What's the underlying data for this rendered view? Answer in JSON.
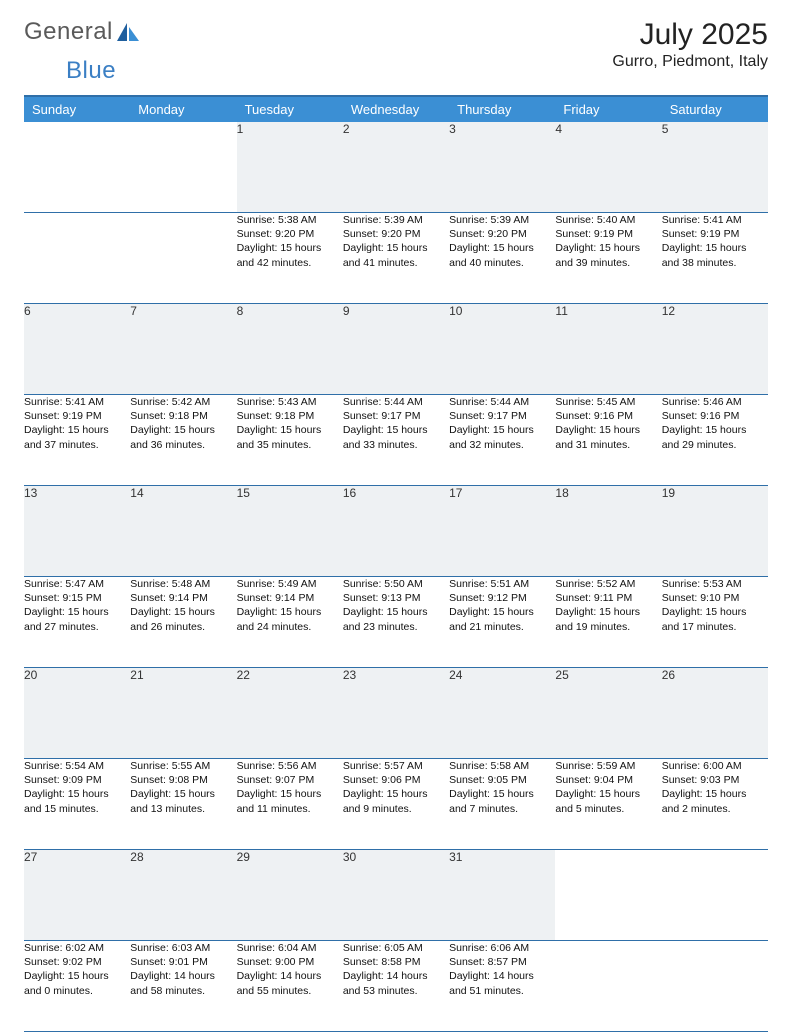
{
  "brand": {
    "word1": "General",
    "word2": "Blue"
  },
  "title": "July 2025",
  "location": "Gurro, Piedmont, Italy",
  "colors": {
    "header_bg": "#3b8fd4",
    "header_text": "#ffffff",
    "rule": "#2f6fa8",
    "daynum_bg": "#eef1f3",
    "logo_gray": "#5a5a5a",
    "logo_blue": "#3b7fc4"
  },
  "columns": [
    "Sunday",
    "Monday",
    "Tuesday",
    "Wednesday",
    "Thursday",
    "Friday",
    "Saturday"
  ],
  "weeks": [
    {
      "nums": [
        "",
        "",
        "1",
        "2",
        "3",
        "4",
        "5"
      ],
      "cells": [
        null,
        null,
        {
          "sunrise": "Sunrise: 5:38 AM",
          "sunset": "Sunset: 9:20 PM",
          "day1": "Daylight: 15 hours",
          "day2": "and 42 minutes."
        },
        {
          "sunrise": "Sunrise: 5:39 AM",
          "sunset": "Sunset: 9:20 PM",
          "day1": "Daylight: 15 hours",
          "day2": "and 41 minutes."
        },
        {
          "sunrise": "Sunrise: 5:39 AM",
          "sunset": "Sunset: 9:20 PM",
          "day1": "Daylight: 15 hours",
          "day2": "and 40 minutes."
        },
        {
          "sunrise": "Sunrise: 5:40 AM",
          "sunset": "Sunset: 9:19 PM",
          "day1": "Daylight: 15 hours",
          "day2": "and 39 minutes."
        },
        {
          "sunrise": "Sunrise: 5:41 AM",
          "sunset": "Sunset: 9:19 PM",
          "day1": "Daylight: 15 hours",
          "day2": "and 38 minutes."
        }
      ]
    },
    {
      "nums": [
        "6",
        "7",
        "8",
        "9",
        "10",
        "11",
        "12"
      ],
      "cells": [
        {
          "sunrise": "Sunrise: 5:41 AM",
          "sunset": "Sunset: 9:19 PM",
          "day1": "Daylight: 15 hours",
          "day2": "and 37 minutes."
        },
        {
          "sunrise": "Sunrise: 5:42 AM",
          "sunset": "Sunset: 9:18 PM",
          "day1": "Daylight: 15 hours",
          "day2": "and 36 minutes."
        },
        {
          "sunrise": "Sunrise: 5:43 AM",
          "sunset": "Sunset: 9:18 PM",
          "day1": "Daylight: 15 hours",
          "day2": "and 35 minutes."
        },
        {
          "sunrise": "Sunrise: 5:44 AM",
          "sunset": "Sunset: 9:17 PM",
          "day1": "Daylight: 15 hours",
          "day2": "and 33 minutes."
        },
        {
          "sunrise": "Sunrise: 5:44 AM",
          "sunset": "Sunset: 9:17 PM",
          "day1": "Daylight: 15 hours",
          "day2": "and 32 minutes."
        },
        {
          "sunrise": "Sunrise: 5:45 AM",
          "sunset": "Sunset: 9:16 PM",
          "day1": "Daylight: 15 hours",
          "day2": "and 31 minutes."
        },
        {
          "sunrise": "Sunrise: 5:46 AM",
          "sunset": "Sunset: 9:16 PM",
          "day1": "Daylight: 15 hours",
          "day2": "and 29 minutes."
        }
      ]
    },
    {
      "nums": [
        "13",
        "14",
        "15",
        "16",
        "17",
        "18",
        "19"
      ],
      "cells": [
        {
          "sunrise": "Sunrise: 5:47 AM",
          "sunset": "Sunset: 9:15 PM",
          "day1": "Daylight: 15 hours",
          "day2": "and 27 minutes."
        },
        {
          "sunrise": "Sunrise: 5:48 AM",
          "sunset": "Sunset: 9:14 PM",
          "day1": "Daylight: 15 hours",
          "day2": "and 26 minutes."
        },
        {
          "sunrise": "Sunrise: 5:49 AM",
          "sunset": "Sunset: 9:14 PM",
          "day1": "Daylight: 15 hours",
          "day2": "and 24 minutes."
        },
        {
          "sunrise": "Sunrise: 5:50 AM",
          "sunset": "Sunset: 9:13 PM",
          "day1": "Daylight: 15 hours",
          "day2": "and 23 minutes."
        },
        {
          "sunrise": "Sunrise: 5:51 AM",
          "sunset": "Sunset: 9:12 PM",
          "day1": "Daylight: 15 hours",
          "day2": "and 21 minutes."
        },
        {
          "sunrise": "Sunrise: 5:52 AM",
          "sunset": "Sunset: 9:11 PM",
          "day1": "Daylight: 15 hours",
          "day2": "and 19 minutes."
        },
        {
          "sunrise": "Sunrise: 5:53 AM",
          "sunset": "Sunset: 9:10 PM",
          "day1": "Daylight: 15 hours",
          "day2": "and 17 minutes."
        }
      ]
    },
    {
      "nums": [
        "20",
        "21",
        "22",
        "23",
        "24",
        "25",
        "26"
      ],
      "cells": [
        {
          "sunrise": "Sunrise: 5:54 AM",
          "sunset": "Sunset: 9:09 PM",
          "day1": "Daylight: 15 hours",
          "day2": "and 15 minutes."
        },
        {
          "sunrise": "Sunrise: 5:55 AM",
          "sunset": "Sunset: 9:08 PM",
          "day1": "Daylight: 15 hours",
          "day2": "and 13 minutes."
        },
        {
          "sunrise": "Sunrise: 5:56 AM",
          "sunset": "Sunset: 9:07 PM",
          "day1": "Daylight: 15 hours",
          "day2": "and 11 minutes."
        },
        {
          "sunrise": "Sunrise: 5:57 AM",
          "sunset": "Sunset: 9:06 PM",
          "day1": "Daylight: 15 hours",
          "day2": "and 9 minutes."
        },
        {
          "sunrise": "Sunrise: 5:58 AM",
          "sunset": "Sunset: 9:05 PM",
          "day1": "Daylight: 15 hours",
          "day2": "and 7 minutes."
        },
        {
          "sunrise": "Sunrise: 5:59 AM",
          "sunset": "Sunset: 9:04 PM",
          "day1": "Daylight: 15 hours",
          "day2": "and 5 minutes."
        },
        {
          "sunrise": "Sunrise: 6:00 AM",
          "sunset": "Sunset: 9:03 PM",
          "day1": "Daylight: 15 hours",
          "day2": "and 2 minutes."
        }
      ]
    },
    {
      "nums": [
        "27",
        "28",
        "29",
        "30",
        "31",
        "",
        ""
      ],
      "cells": [
        {
          "sunrise": "Sunrise: 6:02 AM",
          "sunset": "Sunset: 9:02 PM",
          "day1": "Daylight: 15 hours",
          "day2": "and 0 minutes."
        },
        {
          "sunrise": "Sunrise: 6:03 AM",
          "sunset": "Sunset: 9:01 PM",
          "day1": "Daylight: 14 hours",
          "day2": "and 58 minutes."
        },
        {
          "sunrise": "Sunrise: 6:04 AM",
          "sunset": "Sunset: 9:00 PM",
          "day1": "Daylight: 14 hours",
          "day2": "and 55 minutes."
        },
        {
          "sunrise": "Sunrise: 6:05 AM",
          "sunset": "Sunset: 8:58 PM",
          "day1": "Daylight: 14 hours",
          "day2": "and 53 minutes."
        },
        {
          "sunrise": "Sunrise: 6:06 AM",
          "sunset": "Sunset: 8:57 PM",
          "day1": "Daylight: 14 hours",
          "day2": "and 51 minutes."
        },
        null,
        null
      ]
    }
  ]
}
